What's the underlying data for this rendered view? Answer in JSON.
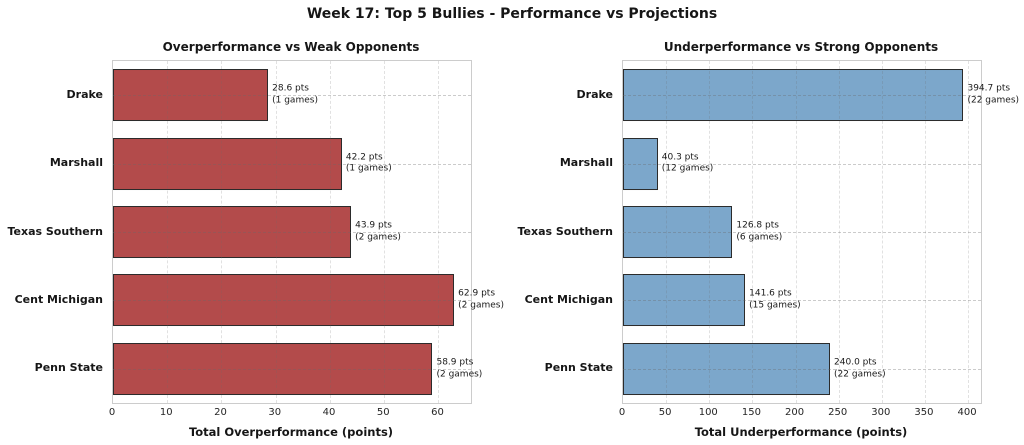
{
  "figure_title": "Week 17: Top 5 Bullies - Performance vs Projections",
  "chart_data": [
    {
      "type": "bar",
      "orientation": "horizontal",
      "title": "Overperformance vs Weak Opponents",
      "xlabel": "Total Overperformance (points)",
      "categories": [
        "Drake",
        "Marshall",
        "Texas Southern",
        "Cent Michigan",
        "Penn State"
      ],
      "values": [
        28.6,
        42.2,
        43.9,
        62.9,
        58.9
      ],
      "games": [
        1,
        1,
        2,
        2,
        2
      ],
      "annotations": [
        [
          "28.6 pts",
          "(1 games)"
        ],
        [
          "42.2 pts",
          "(1 games)"
        ],
        [
          "43.9 pts",
          "(2 games)"
        ],
        [
          "62.9 pts",
          "(2 games)"
        ],
        [
          "58.9 pts",
          "(2 games)"
        ]
      ],
      "xlim": [
        0,
        66
      ],
      "xticks": [
        0,
        10,
        20,
        30,
        40,
        50,
        60
      ],
      "xtick_labels": [
        "0",
        "10",
        "20",
        "30",
        "40",
        "50",
        "60"
      ],
      "bar_color": "#b34b4b",
      "bar_edge_color": "#2b2b2b",
      "grid": true,
      "legend": false
    },
    {
      "type": "bar",
      "orientation": "horizontal",
      "title": "Underperformance vs Strong Opponents",
      "xlabel": "Total Underperformance (points)",
      "categories": [
        "Drake",
        "Marshall",
        "Texas Southern",
        "Cent Michigan",
        "Penn State"
      ],
      "values": [
        394.7,
        40.3,
        126.8,
        141.6,
        240.0
      ],
      "games": [
        22,
        12,
        6,
        15,
        22
      ],
      "annotations": [
        [
          "394.7 pts",
          "(22 games)"
        ],
        [
          "40.3 pts",
          "(12 games)"
        ],
        [
          "126.8 pts",
          "(6 games)"
        ],
        [
          "141.6 pts",
          "(15 games)"
        ],
        [
          "240.0 pts",
          "(22 games)"
        ]
      ],
      "xlim": [
        0,
        415
      ],
      "xticks": [
        0,
        50,
        100,
        150,
        200,
        250,
        300,
        350,
        400
      ],
      "xtick_labels": [
        "0",
        "50",
        "100",
        "150",
        "200",
        "250",
        "300",
        "350",
        "400"
      ],
      "bar_color": "#7ca7cb",
      "bar_edge_color": "#2b2b2b",
      "grid": true,
      "legend": false
    }
  ]
}
